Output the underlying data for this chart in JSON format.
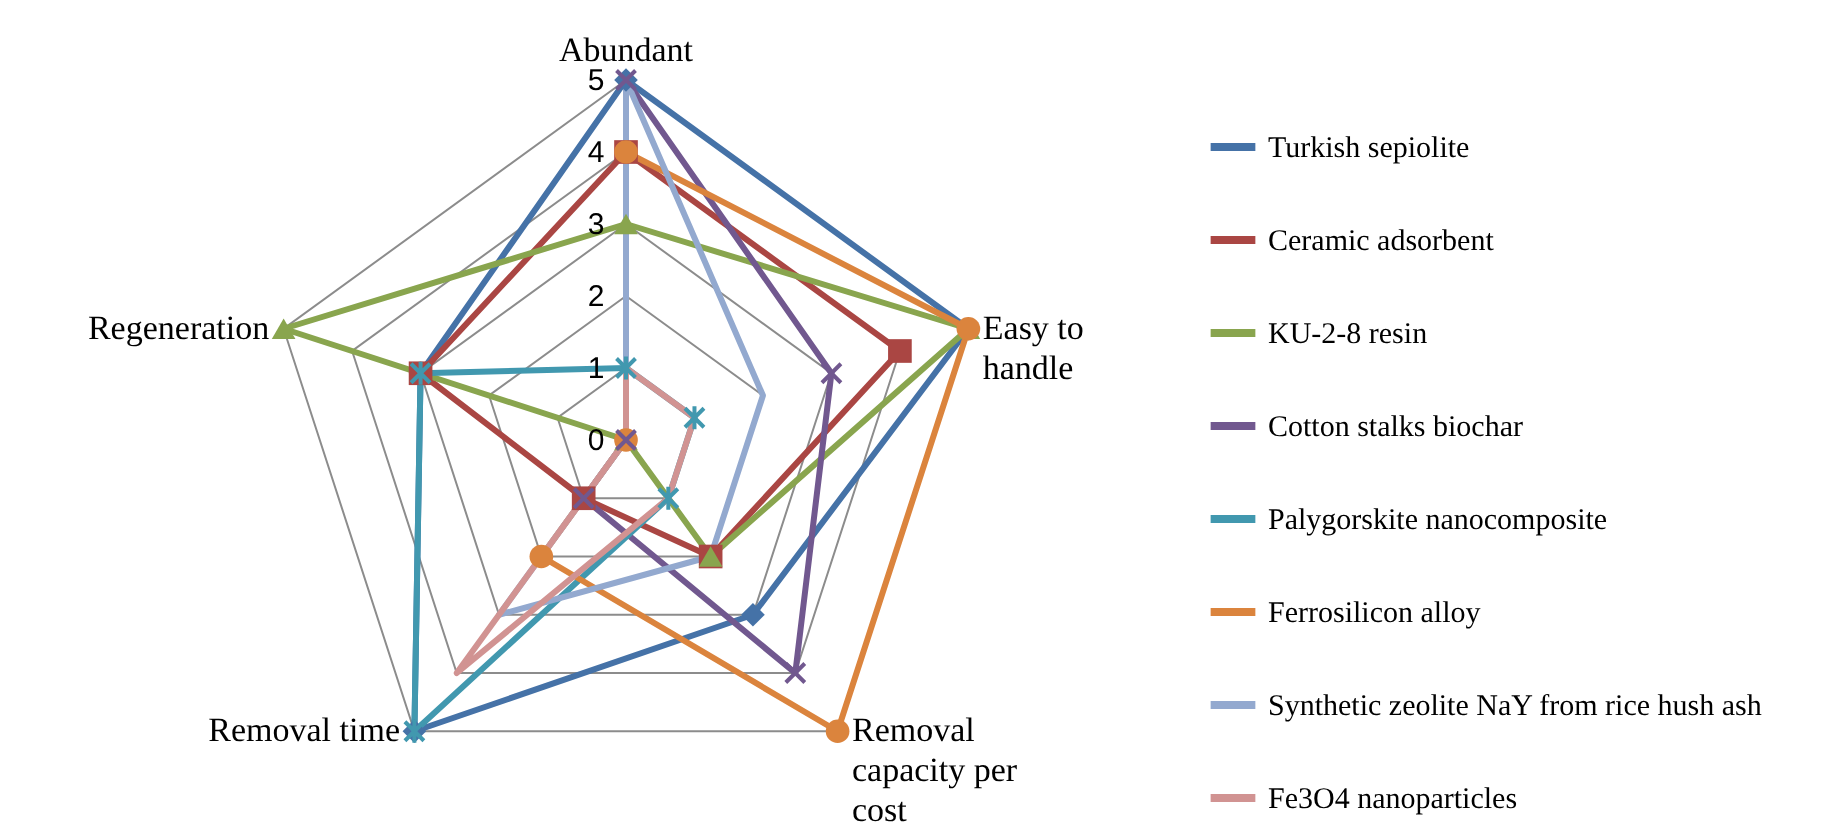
{
  "chart_data": {
    "type": "radar",
    "categories": [
      "Abundant",
      "Easy to handle",
      "Removal capacity per cost",
      "Removal time",
      "Regeneration"
    ],
    "ylim": [
      0,
      5
    ],
    "yticks": [
      0,
      1,
      2,
      3,
      4,
      5
    ],
    "grid": true,
    "legend": "right",
    "line_style": "solid",
    "marker": "diamond",
    "series": [
      {
        "name": "Turkish sepiolite",
        "color": "#4572a7",
        "values": [
          5,
          5,
          3,
          5,
          3
        ]
      },
      {
        "name": "Ceramic adsorbent",
        "color": "#aa4643",
        "marker": "square",
        "values": [
          4,
          4,
          2,
          1,
          3
        ]
      },
      {
        "name": "KU-2-8 resin",
        "color": "#89a54e",
        "marker": "triangle",
        "values": [
          3,
          5,
          2,
          0,
          5
        ]
      },
      {
        "name": "Cotton stalks biochar",
        "color": "#71588f",
        "marker": "cross",
        "values": [
          5,
          3,
          4,
          1,
          0
        ]
      },
      {
        "name": "Palygorskite nanocomposite",
        "color": "#4198af",
        "marker": "star",
        "values": [
          1,
          1,
          1,
          5,
          3
        ]
      },
      {
        "name": "Ferrosilicon alloy",
        "color": "#db843d",
        "marker": "circle",
        "values": [
          4,
          5,
          5,
          2,
          0
        ]
      },
      {
        "name": "Synthetic zeolite NaY from rice hush ash",
        "color": "#93a9cf",
        "marker": "none",
        "values": [
          5,
          2,
          2,
          3,
          0
        ]
      },
      {
        "name": "Fe3O4 nanoparticles",
        "color": "#d19392",
        "marker": "none",
        "values": [
          1,
          1,
          1,
          4,
          0
        ]
      }
    ]
  }
}
